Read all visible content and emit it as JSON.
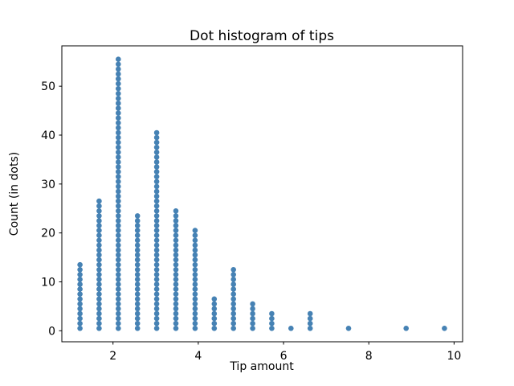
{
  "chart_data": {
    "type": "scatter",
    "subtype": "dot-histogram (stacked dots, one dot per observation)",
    "title": "Dot histogram of tips",
    "xlabel": "Tip amount",
    "ylabel": "Count (in dots)",
    "x": [
      1.225,
      1.675,
      2.125,
      2.575,
      3.025,
      3.475,
      3.925,
      4.375,
      4.825,
      5.275,
      5.725,
      6.175,
      6.625,
      7.525,
      8.875,
      9.775
    ],
    "counts": [
      14,
      27,
      56,
      24,
      41,
      25,
      21,
      7,
      13,
      6,
      4,
      1,
      4,
      1,
      1,
      1
    ],
    "bin_width": 0.45,
    "dot_stack_start": 0.5,
    "dot_stack_step": 1,
    "x_ticks": [
      2,
      4,
      6,
      8,
      10
    ],
    "y_ticks": [
      0,
      10,
      20,
      30,
      40,
      50
    ],
    "xlim": [
      0.8,
      10.2
    ],
    "ylim": [
      -2.25,
      58.25
    ],
    "grid": false,
    "legend": "none",
    "dot_color": "#4682b4",
    "axis_color": "#000000",
    "background_color": "#ffffff"
  }
}
